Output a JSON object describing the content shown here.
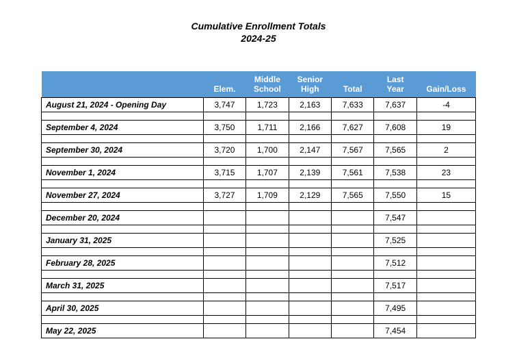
{
  "title": "Cumulative Enrollment Totals",
  "subtitle": "2024-25",
  "header_bg": "#5b9bd5",
  "header_color": "#ffffff",
  "columns": {
    "date": "",
    "elem": "Elem.",
    "middle1": "Middle",
    "middle2": "School",
    "senior1": "Senior",
    "senior2": "High",
    "total": "Total",
    "last1": "Last",
    "last2": "Year",
    "gain": "Gain/Loss"
  },
  "rows": [
    {
      "date": "August 21, 2024 - Opening Day",
      "elem": "3,747",
      "middle": "1,723",
      "senior": "2,163",
      "total": "7,633",
      "last": "7,637",
      "gain": "-4"
    },
    {
      "date": "September 4, 2024",
      "elem": "3,750",
      "middle": "1,711",
      "senior": "2,166",
      "total": "7,627",
      "last": "7,608",
      "gain": "19"
    },
    {
      "date": "September 30, 2024",
      "elem": "3,720",
      "middle": "1,700",
      "senior": "2,147",
      "total": "7,567",
      "last": "7,565",
      "gain": "2"
    },
    {
      "date": "November 1, 2024",
      "elem": "3,715",
      "middle": "1,707",
      "senior": "2,139",
      "total": "7,561",
      "last": "7,538",
      "gain": "23"
    },
    {
      "date": "November 27, 2024",
      "elem": "3,727",
      "middle": "1,709",
      "senior": "2,129",
      "total": "7,565",
      "last": "7,550",
      "gain": "15"
    },
    {
      "date": "December 20, 2024",
      "elem": "",
      "middle": "",
      "senior": "",
      "total": "",
      "last": "7,547",
      "gain": ""
    },
    {
      "date": "January 31, 2025",
      "elem": "",
      "middle": "",
      "senior": "",
      "total": "",
      "last": "7,525",
      "gain": ""
    },
    {
      "date": "February 28, 2025",
      "elem": "",
      "middle": "",
      "senior": "",
      "total": "",
      "last": "7,512",
      "gain": ""
    },
    {
      "date": "March 31, 2025",
      "elem": "",
      "middle": "",
      "senior": "",
      "total": "",
      "last": "7,517",
      "gain": ""
    },
    {
      "date": "April 30, 2025",
      "elem": "",
      "middle": "",
      "senior": "",
      "total": "",
      "last": "7,495",
      "gain": ""
    },
    {
      "date": "May 22, 2025",
      "elem": "",
      "middle": "",
      "senior": "",
      "total": "",
      "last": "7,454",
      "gain": ""
    }
  ]
}
